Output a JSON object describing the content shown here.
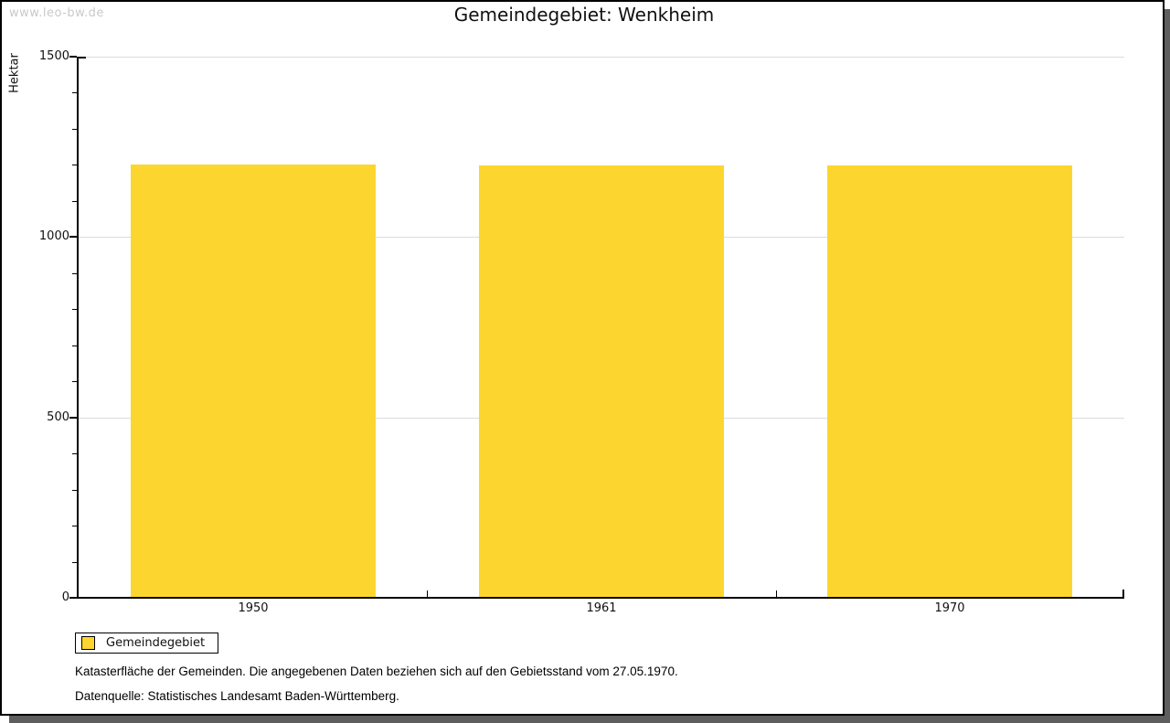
{
  "watermark": "www.leo-bw.de",
  "title": "Gemeindegebiet:  Wenkheim",
  "chart_data": {
    "type": "bar",
    "title": "Gemeindegebiet: Wenkheim",
    "categories": [
      "1950",
      "1961",
      "1970"
    ],
    "series": [
      {
        "name": "Gemeindegebiet",
        "values": [
          1200,
          1198,
          1198
        ]
      }
    ],
    "xlabel": "",
    "ylabel": "Hektar",
    "ylim": [
      0,
      1500
    ],
    "ytick_major": 500,
    "ytick_minor": 100,
    "grid": true,
    "legend_position": "bottom-left",
    "bar_color": "#FCD62E"
  },
  "colors": {
    "bar": "#FCD62E",
    "grid": "#dcdcdc",
    "axis": "#000000",
    "shadow": "#5e5e5e",
    "watermark": "#c9c9c9"
  },
  "footnotes": [
    "Katasterfläche der Gemeinden. Die angegebenen Daten beziehen sich auf den Gebietsstand vom 27.05.1970.",
    "Datenquelle: Statistisches Landesamt Baden-Württemberg."
  ]
}
